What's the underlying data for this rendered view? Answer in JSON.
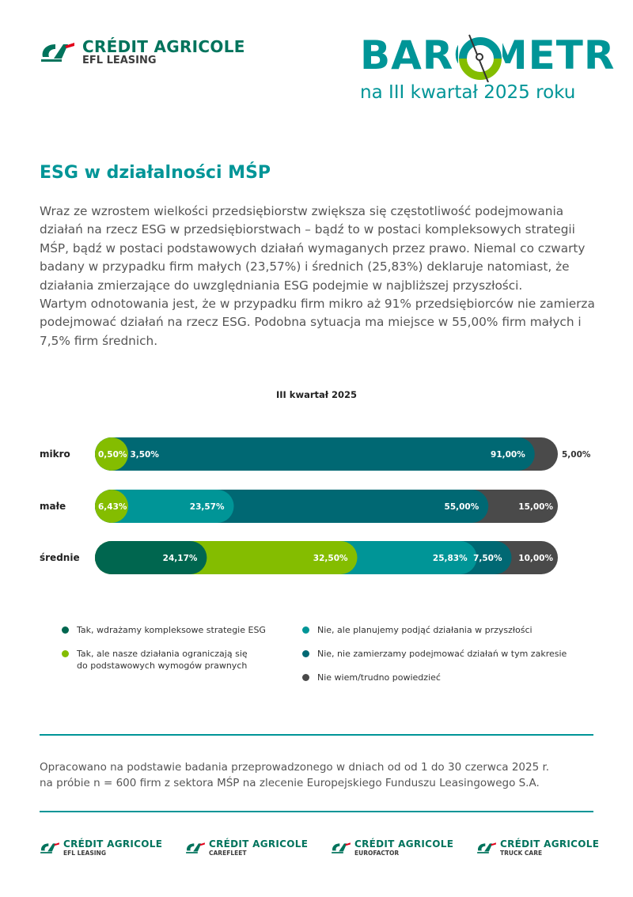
{
  "header": {
    "brand": "CRÉDIT AGRICOLE",
    "brand_sub": "EFL LEASING",
    "barometer_title": "BAROMETR",
    "barometer_subtitle": "na III kwartał 2025 roku"
  },
  "section": {
    "title": "ESG w działalności MŚP",
    "paragraph1": "Wraz ze wzrostem wielkości przedsiębiorstw zwiększa się częstotliwość podejmowania działań na rzecz ESG w przedsiębiorstwach – bądź to w postaci kompleksowych strategii MŚP, bądź w postaci podstawowych działań wymaganych przez prawo. Niemal co czwarty badany w przypadku firm małych (23,57%) i średnich (25,83%) deklaruje natomiast, że działania zmierzające do uwzględniania ESG podejmie w najbliższej przyszłości.",
    "paragraph2": "Wartym odnotowania jest, że w przypadku firm mikro aż 91% przedsiębiorców nie zamierza podejmować działań na rzecz ESG. Podobna sytuacja ma miejsce w 55,00% firm małych i 7,5% firm średnich."
  },
  "colors": {
    "dark_green": "#00664f",
    "lime": "#84bd00",
    "teal": "#009597",
    "dark_teal": "#006873",
    "grey": "#4a4a4a",
    "accent": "#009597"
  },
  "chart_data": {
    "type": "bar",
    "orientation": "horizontal-stacked-100",
    "title": "III kwartał 2025",
    "categories": [
      "mikro",
      "małe",
      "średnie"
    ],
    "series": [
      {
        "name": "Tak, wdrażamy kompleksowe strategie ESG",
        "color": "#00664f",
        "values": [
          null,
          null,
          24.17
        ],
        "labels": [
          "",
          "",
          "24,17%"
        ]
      },
      {
        "name": "Tak, ale nasze działania ograniczają się do podstawowych wymogów prawnych",
        "color": "#84bd00",
        "values": [
          0.5,
          6.43,
          32.5
        ],
        "labels": [
          "0,50%",
          "6,43%",
          "32,50%"
        ]
      },
      {
        "name": "Nie, ale planujemy podjąć działania w przyszłości",
        "color": "#009597",
        "values": [
          3.5,
          23.57,
          25.83
        ],
        "labels": [
          "3,50%",
          "23,57%",
          "25,83%"
        ]
      },
      {
        "name": "Nie, nie zamierzamy podejmować działań w tym zakresie",
        "color": "#006873",
        "values": [
          91.0,
          55.0,
          7.5
        ],
        "labels": [
          "91,00%",
          "55,00%",
          "7,50%"
        ]
      },
      {
        "name": "Nie wiem/trudno powiedzieć",
        "color": "#4a4a4a",
        "values": [
          5.0,
          15.0,
          10.0
        ],
        "labels": [
          "5,00%",
          "15,00%",
          "10,00%"
        ]
      }
    ],
    "xlim": [
      0,
      100
    ],
    "grid": false,
    "legend": {
      "placement": "bottom",
      "left": [
        {
          "label": "Tak, wdrażamy kompleksowe strategie ESG",
          "color": "#00664f"
        },
        {
          "label": "Tak, ale nasze działania ograniczają się",
          "label2": "do podstawowych wymogów prawnych",
          "color": "#84bd00"
        }
      ],
      "right": [
        {
          "label": "Nie, ale planujemy podjąć działania w przyszłości",
          "color": "#009597"
        },
        {
          "label": "Nie, nie zamierzamy podejmować działań w tym zakresie",
          "color": "#006873"
        },
        {
          "label": "Nie wiem/trudno powiedzieć",
          "color": "#4a4a4a"
        }
      ]
    }
  },
  "footer": {
    "note_line1": "Opracowano na podstawie badania przeprowadzonego w dniach od od 1 do 30 czerwca 2025 r.",
    "note_line2": "na próbie n = 600 firm z sektora MŚP na zlecenie Europejskiego Funduszu Leasingowego S.A.",
    "logos": [
      {
        "name": "CRÉDIT AGRICOLE",
        "sub": "EFL LEASING"
      },
      {
        "name": "CRÉDIT AGRICOLE",
        "sub": "CAREFLEET"
      },
      {
        "name": "CRÉDIT AGRICOLE",
        "sub": "EUROFACTOR"
      },
      {
        "name": "CRÉDIT AGRICOLE",
        "sub": "TRUCK CARE"
      }
    ]
  }
}
